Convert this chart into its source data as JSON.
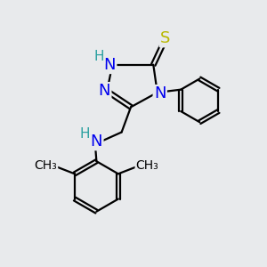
{
  "bg_color": "#e8eaec",
  "atom_colors": {
    "N": "#0000ee",
    "H": "#2aa0a0",
    "S": "#b8b800",
    "C": "#000000"
  },
  "bond_color": "#000000",
  "bond_width": 1.6,
  "font_size_N": 13,
  "font_size_H": 11,
  "font_size_S": 13,
  "font_size_me": 10
}
